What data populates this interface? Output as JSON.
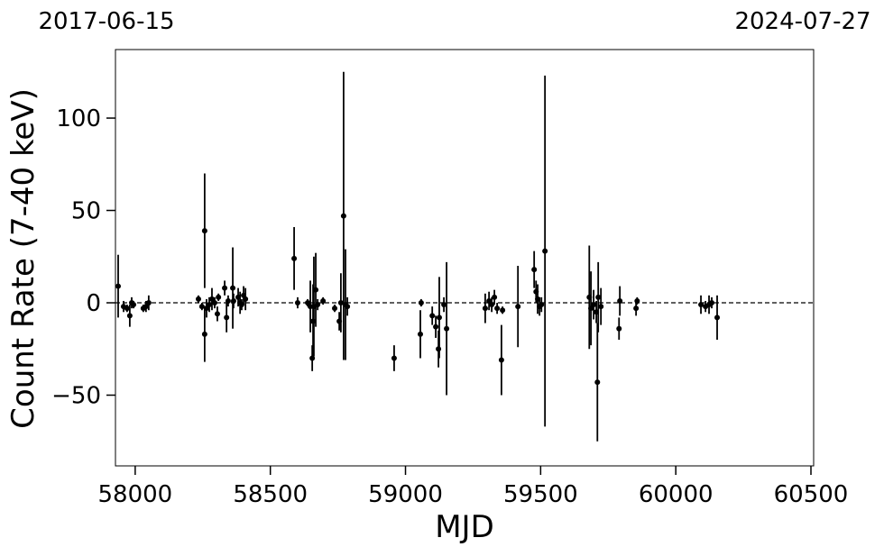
{
  "chart_data": {
    "type": "errorbar",
    "annotations": [
      "2017-06-15",
      "2024-07-27"
    ],
    "xlabel": "MJD",
    "ylabel": "Count Rate (7-40 keV)",
    "color": "#000000",
    "reference_line": 0,
    "x": [
      57937,
      57957,
      57970,
      57980,
      57987,
      57994,
      58030,
      58040,
      58050,
      58234,
      58247,
      58257,
      58257,
      58264,
      58274,
      58284,
      58294,
      58304,
      58308,
      58331,
      58338,
      58344,
      58361,
      58364,
      58381,
      58388,
      58394,
      58401,
      58408,
      58588,
      58601,
      58638,
      58648,
      58655,
      58658,
      58661,
      58668,
      58675,
      58695,
      58738,
      58755,
      58761,
      58771,
      58778,
      58785,
      58958,
      59055,
      59058,
      59099,
      59112,
      59122,
      59125,
      59142,
      59152,
      59295,
      59309,
      59319,
      59329,
      59339,
      59355,
      59359,
      59416,
      59476,
      59483,
      59489,
      59496,
      59503,
      59516,
      59680,
      59686,
      59696,
      59706,
      59710,
      59713,
      59723,
      59790,
      59793,
      59853,
      59857,
      60093,
      60110,
      60123,
      60133,
      60153
    ],
    "values": [
      9,
      -2,
      -3,
      -7,
      0,
      -1,
      -3,
      -2,
      0,
      2,
      -2,
      39,
      -17,
      -3,
      -1,
      2,
      0,
      -6,
      3,
      8,
      -8,
      1,
      8,
      1,
      3,
      0,
      -1,
      4,
      2,
      24,
      0,
      0,
      -2,
      -30,
      -10,
      -2,
      7,
      -1,
      1,
      -3,
      -10,
      0,
      47,
      -1,
      -2,
      -30,
      -17,
      0,
      -7,
      -13,
      -25,
      -8,
      -1,
      -14,
      -3,
      1,
      -1,
      3,
      -3,
      -31,
      -4,
      -2,
      18,
      6,
      2,
      -2,
      -1,
      28,
      3,
      -3,
      -1,
      -5,
      -43,
      3,
      -2,
      -14,
      1,
      -3,
      1,
      -1,
      -2,
      -1,
      0,
      -8
    ],
    "errors": [
      17,
      3,
      2,
      6,
      3,
      2,
      2,
      3,
      4,
      2,
      2,
      31,
      15,
      5,
      4,
      6,
      3,
      4,
      2,
      4,
      8,
      3,
      22,
      4,
      5,
      6,
      3,
      5,
      6,
      17,
      3,
      2,
      14,
      7,
      20,
      27,
      20,
      3,
      2,
      2,
      5,
      16,
      78,
      30,
      5,
      7,
      13,
      2,
      5,
      6,
      10,
      22,
      4,
      36,
      8,
      5,
      4,
      4,
      3,
      19,
      2,
      22,
      10,
      6,
      8,
      5,
      4,
      95,
      28,
      20,
      8,
      6,
      32,
      19,
      10,
      6,
      8,
      4,
      2,
      5,
      3,
      5,
      3,
      12
    ],
    "xlim": [
      57927,
      60510
    ],
    "ylim": [
      -88.3,
      137.1
    ],
    "xticks": [
      58000,
      58500,
      59000,
      59500,
      60000,
      60500
    ],
    "yticks": [
      {
        "value": -50,
        "label": "−50"
      },
      0,
      50,
      100
    ]
  }
}
